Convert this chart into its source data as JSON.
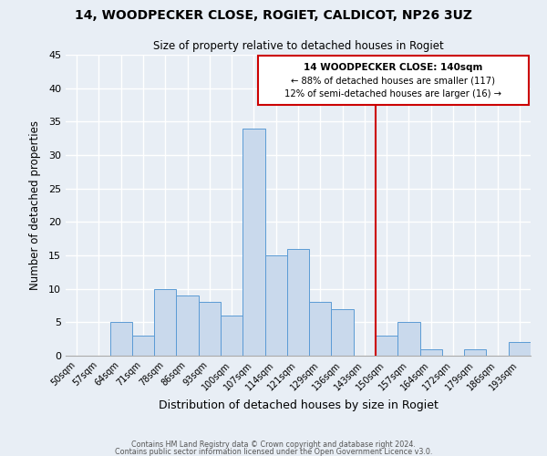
{
  "title": "14, WOODPECKER CLOSE, ROGIET, CALDICOT, NP26 3UZ",
  "subtitle": "Size of property relative to detached houses in Rogiet",
  "xlabel": "Distribution of detached houses by size in Rogiet",
  "ylabel": "Number of detached properties",
  "bin_labels": [
    "50sqm",
    "57sqm",
    "64sqm",
    "71sqm",
    "78sqm",
    "86sqm",
    "93sqm",
    "100sqm",
    "107sqm",
    "114sqm",
    "121sqm",
    "129sqm",
    "136sqm",
    "143sqm",
    "150sqm",
    "157sqm",
    "164sqm",
    "172sqm",
    "179sqm",
    "186sqm",
    "193sqm"
  ],
  "bar_heights": [
    0,
    0,
    5,
    3,
    10,
    9,
    8,
    6,
    34,
    15,
    16,
    8,
    7,
    0,
    3,
    5,
    1,
    0,
    1,
    0,
    2
  ],
  "bar_color": "#c9d9ec",
  "bar_edge_color": "#5b9bd5",
  "background_color": "#e8eef5",
  "grid_color": "#ffffff",
  "vline_x_idx": 13.5,
  "vline_color": "#cc0000",
  "annotation_title": "14 WOODPECKER CLOSE: 140sqm",
  "annotation_line1": "← 88% of detached houses are smaller (117)",
  "annotation_line2": "12% of semi-detached houses are larger (16) →",
  "annotation_box_edge": "#cc0000",
  "ylim": [
    0,
    45
  ],
  "yticks": [
    0,
    5,
    10,
    15,
    20,
    25,
    30,
    35,
    40,
    45
  ],
  "footer_line1": "Contains HM Land Registry data © Crown copyright and database right 2024.",
  "footer_line2": "Contains public sector information licensed under the Open Government Licence v3.0."
}
